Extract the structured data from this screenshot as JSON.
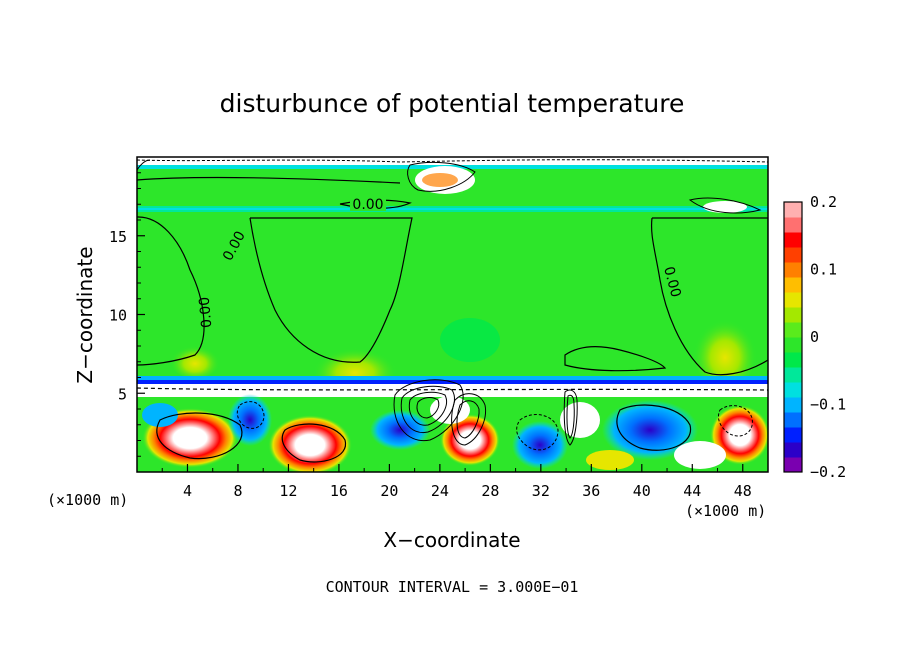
{
  "chart_data": {
    "type": "heatmap",
    "title": "disturbunce of potential temperature",
    "xlabel": "X−coordinate",
    "ylabel": "Z−coordinate",
    "x_unit": "(×1000 m)",
    "y_unit": "(×1000 m)",
    "xlim": [
      0,
      50
    ],
    "ylim": [
      0,
      20
    ],
    "x_ticks": [
      "4",
      "8",
      "12",
      "16",
      "20",
      "24",
      "28",
      "32",
      "36",
      "40",
      "44",
      "48"
    ],
    "y_ticks": [
      "5",
      "10",
      "15"
    ],
    "colorbar": {
      "range": [
        -0.2,
        0.2
      ],
      "tick_labels": [
        "0.2",
        "0.1",
        "0",
        "−0.1",
        "−0.2"
      ],
      "colors": [
        "#7a00b0",
        "#2b00c8",
        "#0020ff",
        "#0070ff",
        "#00b4ff",
        "#00e0e0",
        "#00e89a",
        "#00e84a",
        "#2de62a",
        "#5aeb1c",
        "#a4e800",
        "#e6e600",
        "#ffbe00",
        "#ff8000",
        "#ff4000",
        "#ff0000",
        "#ff7070",
        "#ffb0b0"
      ]
    },
    "contour_labels": [
      "0.00",
      "0.00",
      "0.00",
      "0.00"
    ],
    "contour_interval_text": "CONTOUR INTERVAL = 3.000E−01"
  }
}
